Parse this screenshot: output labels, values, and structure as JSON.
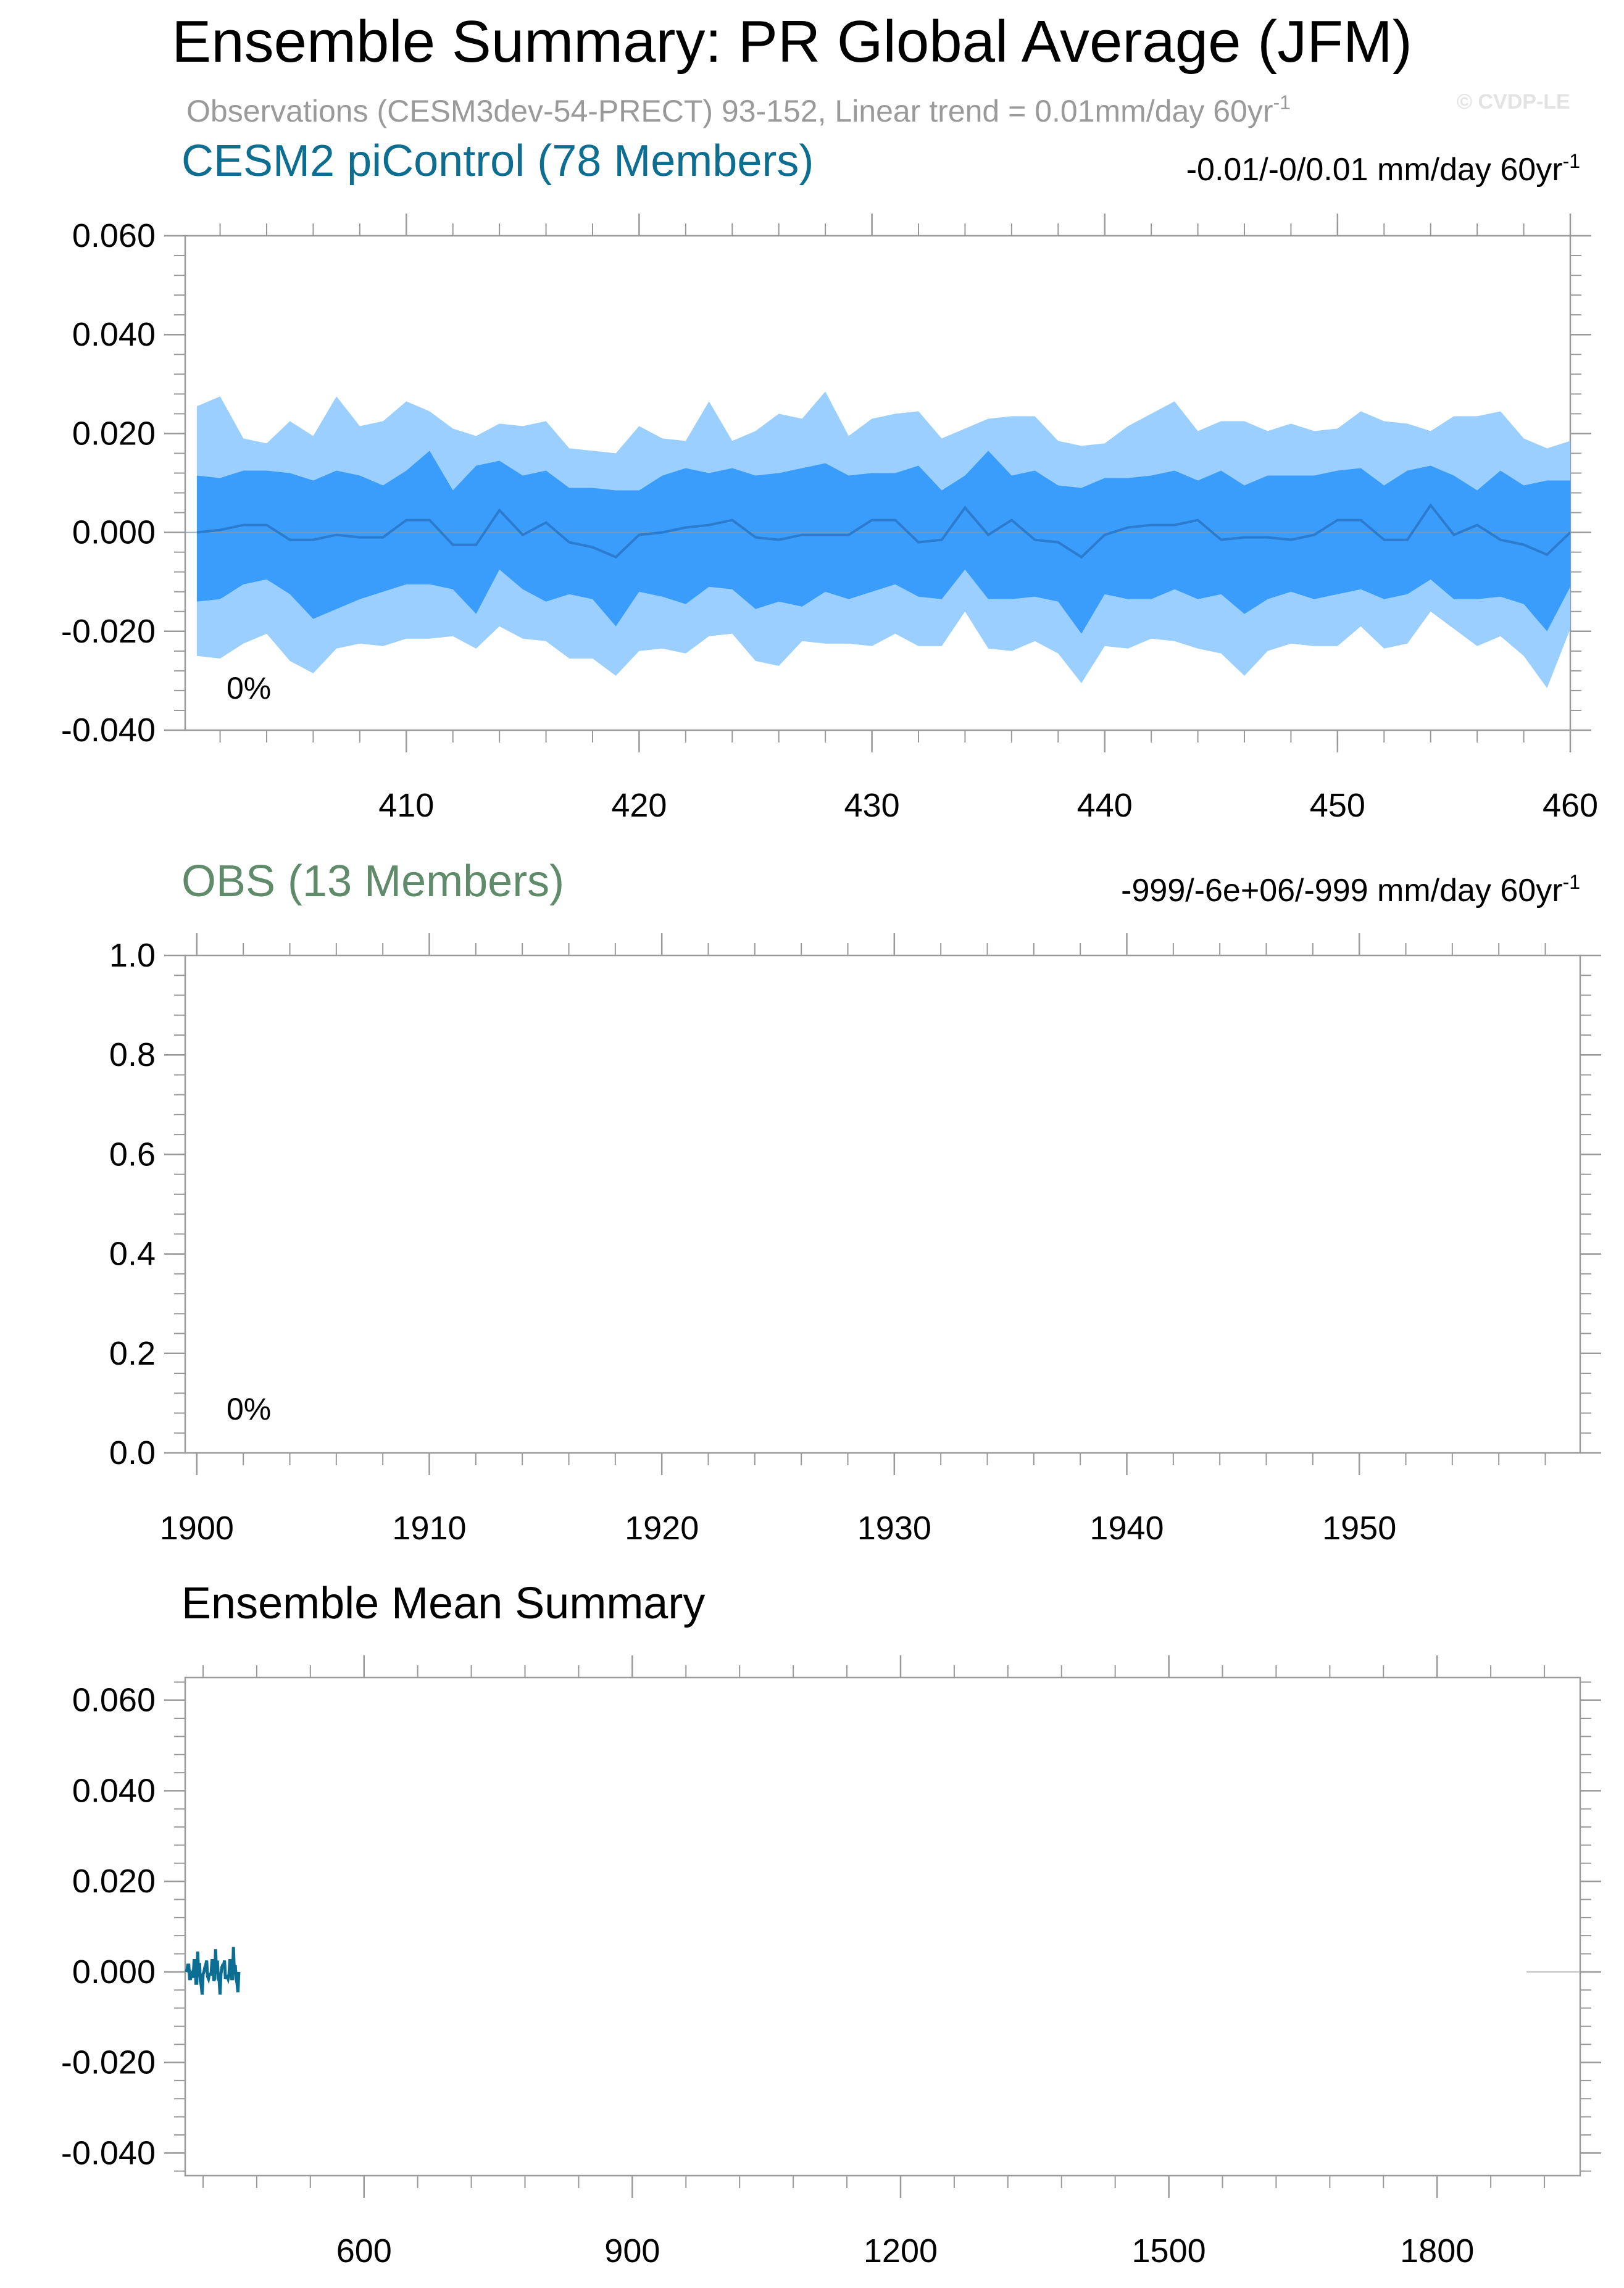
{
  "title": "Ensemble Summary: PR Global Average (JFM)",
  "subtitle": "Observations (CESM3dev-54-PRECT) 93-152, Linear trend = 0.01mm/day 60yr",
  "subtitle_sup": "-1",
  "watermark": "© CVDP-LE",
  "colors": {
    "cesm_title": "#0e6e92",
    "obs_title": "#5f8b6a",
    "band_outer": "#9bcfff",
    "band_inner": "#3a9dfb",
    "mean_line": "#2b7bcf",
    "ensmean_line": "#0d6e93",
    "obs_ref": "#bfbfbf",
    "axis": "#9a9a9a",
    "text": "#000000"
  },
  "chart_data": [
    {
      "type": "area",
      "panel_title": "CESM2 piControl (78 Members)",
      "trend_text": "-0.01/-0/0.01 mm/day 60yr",
      "trend_sup": "-1",
      "percent_label": "0%",
      "xlim": [
        400.5,
        460
      ],
      "ylim": [
        -0.04,
        0.06
      ],
      "xticks": [
        410,
        420,
        430,
        440,
        450,
        460
      ],
      "xtick_labels": [
        "410",
        "420",
        "430",
        "440",
        "450",
        "460"
      ],
      "yticks": [
        0.06,
        0.04,
        0.02,
        0.0,
        -0.02,
        -0.04
      ],
      "ytick_labels": [
        "0.060",
        "0.040",
        "0.020",
        "0.000",
        "-0.020",
        "-0.040"
      ],
      "x": [
        401,
        402,
        403,
        404,
        405,
        406,
        407,
        408,
        409,
        410,
        411,
        412,
        413,
        414,
        415,
        416,
        417,
        418,
        419,
        420,
        421,
        422,
        423,
        424,
        425,
        426,
        427,
        428,
        429,
        430,
        431,
        432,
        433,
        434,
        435,
        436,
        437,
        438,
        439,
        440,
        441,
        442,
        443,
        444,
        445,
        446,
        447,
        448,
        449,
        450,
        451,
        452,
        453,
        454,
        455,
        456,
        457,
        458,
        459,
        460
      ],
      "series": [
        {
          "name": "max",
          "values": [
            0.0255,
            0.0275,
            0.019,
            0.018,
            0.0225,
            0.0195,
            0.0275,
            0.0215,
            0.0225,
            0.0265,
            0.0245,
            0.021,
            0.0195,
            0.022,
            0.0215,
            0.0225,
            0.017,
            0.0165,
            0.016,
            0.0215,
            0.019,
            0.0185,
            0.0265,
            0.0185,
            0.0205,
            0.024,
            0.023,
            0.0285,
            0.0195,
            0.023,
            0.024,
            0.0245,
            0.019,
            0.021,
            0.023,
            0.0235,
            0.0235,
            0.0185,
            0.0175,
            0.018,
            0.0215,
            0.024,
            0.0265,
            0.0205,
            0.0225,
            0.0225,
            0.0205,
            0.022,
            0.0205,
            0.021,
            0.0245,
            0.0225,
            0.022,
            0.0205,
            0.0235,
            0.0235,
            0.0245,
            0.019,
            0.017,
            0.0185
          ]
        },
        {
          "name": "p90",
          "values": [
            0.0115,
            0.011,
            0.0125,
            0.0125,
            0.012,
            0.0105,
            0.0125,
            0.0115,
            0.0095,
            0.0125,
            0.0165,
            0.0085,
            0.0135,
            0.0145,
            0.0115,
            0.0125,
            0.009,
            0.009,
            0.0085,
            0.0085,
            0.0115,
            0.013,
            0.012,
            0.013,
            0.0115,
            0.012,
            0.013,
            0.014,
            0.0115,
            0.012,
            0.012,
            0.0135,
            0.0085,
            0.0115,
            0.0165,
            0.0115,
            0.0125,
            0.0095,
            0.009,
            0.011,
            0.011,
            0.0115,
            0.0125,
            0.0105,
            0.0125,
            0.0095,
            0.0115,
            0.0115,
            0.0115,
            0.0125,
            0.013,
            0.0095,
            0.0125,
            0.0135,
            0.0115,
            0.0085,
            0.0125,
            0.0095,
            0.0105,
            0.0105
          ]
        },
        {
          "name": "mean",
          "values": [
            0.0,
            0.0005,
            0.0015,
            0.0015,
            -0.0015,
            -0.0015,
            -0.0005,
            -0.001,
            -0.001,
            0.0025,
            0.0025,
            -0.0025,
            -0.0025,
            0.0045,
            -0.0005,
            0.002,
            -0.002,
            -0.003,
            -0.005,
            -0.0005,
            0.0,
            0.001,
            0.0015,
            0.0025,
            -0.001,
            -0.0015,
            -0.0005,
            -0.0005,
            -0.0005,
            0.0025,
            0.0025,
            -0.002,
            -0.0015,
            0.005,
            -0.0005,
            0.0025,
            -0.0015,
            -0.002,
            -0.005,
            -0.0005,
            0.001,
            0.0015,
            0.0015,
            0.0025,
            -0.0015,
            -0.001,
            -0.001,
            -0.0015,
            -0.0005,
            0.0025,
            0.0025,
            -0.0015,
            -0.0015,
            0.0055,
            -0.0005,
            0.0015,
            -0.0015,
            -0.0025,
            -0.0045,
            0.0
          ]
        },
        {
          "name": "p10",
          "values": [
            -0.014,
            -0.0135,
            -0.0105,
            -0.0095,
            -0.0125,
            -0.0175,
            -0.0155,
            -0.0135,
            -0.012,
            -0.0105,
            -0.0105,
            -0.0115,
            -0.0165,
            -0.0075,
            -0.0115,
            -0.014,
            -0.0125,
            -0.0135,
            -0.019,
            -0.012,
            -0.013,
            -0.0145,
            -0.011,
            -0.0115,
            -0.0155,
            -0.014,
            -0.015,
            -0.012,
            -0.0135,
            -0.012,
            -0.0105,
            -0.013,
            -0.0135,
            -0.0075,
            -0.0135,
            -0.0135,
            -0.013,
            -0.014,
            -0.0205,
            -0.0125,
            -0.0135,
            -0.0135,
            -0.0115,
            -0.0135,
            -0.0125,
            -0.0165,
            -0.0135,
            -0.012,
            -0.0135,
            -0.0125,
            -0.0115,
            -0.0135,
            -0.0125,
            -0.0095,
            -0.0135,
            -0.0135,
            -0.013,
            -0.0145,
            -0.02,
            -0.011
          ]
        },
        {
          "name": "min",
          "values": [
            -0.025,
            -0.0255,
            -0.0225,
            -0.0205,
            -0.026,
            -0.0285,
            -0.0235,
            -0.0225,
            -0.023,
            -0.0215,
            -0.0215,
            -0.021,
            -0.0235,
            -0.019,
            -0.0215,
            -0.022,
            -0.0255,
            -0.0255,
            -0.029,
            -0.024,
            -0.0235,
            -0.0245,
            -0.021,
            -0.0205,
            -0.026,
            -0.027,
            -0.022,
            -0.0225,
            -0.0225,
            -0.023,
            -0.0205,
            -0.023,
            -0.023,
            -0.016,
            -0.0235,
            -0.024,
            -0.022,
            -0.0245,
            -0.0305,
            -0.023,
            -0.0235,
            -0.0215,
            -0.022,
            -0.0235,
            -0.0245,
            -0.029,
            -0.024,
            -0.0225,
            -0.023,
            -0.023,
            -0.019,
            -0.0235,
            -0.0225,
            -0.016,
            -0.0195,
            -0.023,
            -0.021,
            -0.025,
            -0.0315,
            -0.0195
          ]
        }
      ]
    },
    {
      "type": "line",
      "panel_title": "OBS (13 Members)",
      "trend_text": "-999/-6e+06/-999 mm/day 60yr",
      "trend_sup": "-1",
      "percent_label": "0%",
      "xlim": [
        1899.5,
        1959.5
      ],
      "ylim": [
        0.0,
        1.0
      ],
      "xticks": [
        1900,
        1910,
        1920,
        1930,
        1940,
        1950
      ],
      "xtick_labels": [
        "1900",
        "1910",
        "1920",
        "1930",
        "1940",
        "1950"
      ],
      "yticks": [
        1.0,
        0.8,
        0.6,
        0.4,
        0.2,
        0.0
      ],
      "ytick_labels": [
        "1.0",
        "0.8",
        "0.6",
        "0.4",
        "0.2",
        "0.0"
      ],
      "series": []
    },
    {
      "type": "line",
      "panel_title": "Ensemble Mean Summary",
      "xlim": [
        400,
        1960
      ],
      "ylim": [
        -0.045,
        0.065
      ],
      "xticks": [
        600,
        900,
        1200,
        1500,
        1800
      ],
      "xtick_labels": [
        "600",
        "900",
        "1200",
        "1500",
        "1800"
      ],
      "yticks": [
        0.06,
        0.04,
        0.02,
        0.0,
        -0.02,
        -0.04
      ],
      "ytick_labels": [
        "0.060",
        "0.040",
        "0.020",
        "0.000",
        "-0.020",
        "-0.040"
      ],
      "series": [
        {
          "name": "CESM2 piControl ensemble mean",
          "x_start": 401,
          "x_end": 460,
          "values_ref": "chart_data.0.series.mean"
        },
        {
          "name": "Observations",
          "x": [
            1900,
            1959
          ],
          "values": [
            0.0,
            0.0
          ]
        }
      ]
    }
  ]
}
